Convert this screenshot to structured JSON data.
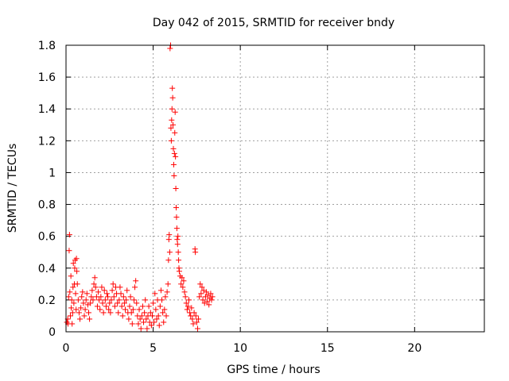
{
  "chart_data": {
    "type": "scatter",
    "title": "Day 042 of 2015, SRMTID for receiver bndy",
    "xlabel": "GPS time / hours",
    "ylabel": "SRMTID / TECUs",
    "xlim": [
      0,
      24
    ],
    "ylim": [
      0,
      1.8
    ],
    "xticks": [
      0,
      5,
      10,
      15,
      20
    ],
    "yticks": [
      0,
      0.2,
      0.4,
      0.6,
      0.8,
      1,
      1.2,
      1.4,
      1.6,
      1.8
    ],
    "xtick_labels": [
      "0",
      "5",
      "10",
      "15",
      "20"
    ],
    "ytick_labels": [
      "0",
      "0.2",
      "0.4",
      "0.6",
      "0.8",
      "1",
      "1.2",
      "1.4",
      "1.6",
      "1.8"
    ],
    "grid": true,
    "marker": "+",
    "color": "#ff0000",
    "series": [
      {
        "name": "SRMTID",
        "points": [
          [
            0.05,
            0.06
          ],
          [
            0.1,
            0.08
          ],
          [
            0.12,
            0.05
          ],
          [
            0.15,
            0.22
          ],
          [
            0.18,
            0.51
          ],
          [
            0.2,
            0.61
          ],
          [
            0.22,
            0.25
          ],
          [
            0.25,
            0.1
          ],
          [
            0.28,
            0.35
          ],
          [
            0.3,
            0.15
          ],
          [
            0.33,
            0.2
          ],
          [
            0.35,
            0.05
          ],
          [
            0.38,
            0.12
          ],
          [
            0.4,
            0.28
          ],
          [
            0.42,
            0.43
          ],
          [
            0.45,
            0.18
          ],
          [
            0.48,
            0.3
          ],
          [
            0.5,
            0.4
          ],
          [
            0.52,
            0.45
          ],
          [
            0.55,
            0.24
          ],
          [
            0.58,
            0.14
          ],
          [
            0.6,
            0.46
          ],
          [
            0.62,
            0.38
          ],
          [
            0.65,
            0.3
          ],
          [
            0.7,
            0.2
          ],
          [
            0.75,
            0.12
          ],
          [
            0.8,
            0.08
          ],
          [
            0.85,
            0.15
          ],
          [
            0.9,
            0.22
          ],
          [
            0.95,
            0.25
          ],
          [
            1.0,
            0.18
          ],
          [
            1.05,
            0.1
          ],
          [
            1.1,
            0.14
          ],
          [
            1.15,
            0.2
          ],
          [
            1.2,
            0.24
          ],
          [
            1.25,
            0.17
          ],
          [
            1.3,
            0.12
          ],
          [
            1.35,
            0.08
          ],
          [
            1.4,
            0.18
          ],
          [
            1.45,
            0.22
          ],
          [
            1.5,
            0.26
          ],
          [
            1.55,
            0.2
          ],
          [
            1.6,
            0.3
          ],
          [
            1.65,
            0.34
          ],
          [
            1.7,
            0.28
          ],
          [
            1.75,
            0.22
          ],
          [
            1.8,
            0.16
          ],
          [
            1.85,
            0.25
          ],
          [
            1.9,
            0.2
          ],
          [
            1.95,
            0.14
          ],
          [
            2.0,
            0.22
          ],
          [
            2.05,
            0.28
          ],
          [
            2.1,
            0.18
          ],
          [
            2.15,
            0.12
          ],
          [
            2.2,
            0.26
          ],
          [
            2.25,
            0.2
          ],
          [
            2.3,
            0.16
          ],
          [
            2.35,
            0.24
          ],
          [
            2.4,
            0.22
          ],
          [
            2.45,
            0.14
          ],
          [
            2.5,
            0.18
          ],
          [
            2.55,
            0.12
          ],
          [
            2.6,
            0.2
          ],
          [
            2.65,
            0.26
          ],
          [
            2.7,
            0.3
          ],
          [
            2.75,
            0.22
          ],
          [
            2.8,
            0.16
          ],
          [
            2.85,
            0.28
          ],
          [
            2.9,
            0.24
          ],
          [
            2.95,
            0.18
          ],
          [
            3.0,
            0.12
          ],
          [
            3.05,
            0.2
          ],
          [
            3.1,
            0.28
          ],
          [
            3.15,
            0.24
          ],
          [
            3.2,
            0.16
          ],
          [
            3.25,
            0.1
          ],
          [
            3.3,
            0.22
          ],
          [
            3.35,
            0.18
          ],
          [
            3.4,
            0.14
          ],
          [
            3.45,
            0.2
          ],
          [
            3.5,
            0.26
          ],
          [
            3.55,
            0.12
          ],
          [
            3.6,
            0.08
          ],
          [
            3.65,
            0.16
          ],
          [
            3.7,
            0.22
          ],
          [
            3.75,
            0.12
          ],
          [
            3.8,
            0.05
          ],
          [
            3.85,
            0.14
          ],
          [
            3.9,
            0.2
          ],
          [
            3.95,
            0.28
          ],
          [
            4.0,
            0.32
          ],
          [
            4.05,
            0.18
          ],
          [
            4.1,
            0.1
          ],
          [
            4.15,
            0.05
          ],
          [
            4.2,
            0.14
          ],
          [
            4.25,
            0.08
          ],
          [
            4.3,
            0.02
          ],
          [
            4.35,
            0.1
          ],
          [
            4.4,
            0.16
          ],
          [
            4.45,
            0.06
          ],
          [
            4.5,
            0.12
          ],
          [
            4.55,
            0.2
          ],
          [
            4.6,
            0.08
          ],
          [
            4.65,
            0.02
          ],
          [
            4.7,
            0.1
          ],
          [
            4.75,
            0.16
          ],
          [
            4.8,
            0.06
          ],
          [
            4.85,
            0.12
          ],
          [
            4.9,
            0.04
          ],
          [
            4.95,
            0.1
          ],
          [
            5.0,
            0.18
          ],
          [
            5.05,
            0.06
          ],
          [
            5.1,
            0.24
          ],
          [
            5.15,
            0.14
          ],
          [
            5.2,
            0.08
          ],
          [
            5.25,
            0.2
          ],
          [
            5.3,
            0.1
          ],
          [
            5.35,
            0.04
          ],
          [
            5.4,
            0.16
          ],
          [
            5.45,
            0.26
          ],
          [
            5.5,
            0.2
          ],
          [
            5.55,
            0.12
          ],
          [
            5.6,
            0.06
          ],
          [
            5.65,
            0.14
          ],
          [
            5.7,
            0.22
          ],
          [
            5.75,
            0.1
          ],
          [
            5.8,
            0.25
          ],
          [
            5.85,
            0.3
          ],
          [
            5.88,
            0.45
          ],
          [
            5.9,
            0.58
          ],
          [
            5.92,
            0.61
          ],
          [
            5.95,
            0.5
          ],
          [
            5.97,
            1.78
          ],
          [
            6.0,
            1.8
          ],
          [
            6.02,
            1.28
          ],
          [
            6.04,
            1.2
          ],
          [
            6.06,
            1.33
          ],
          [
            6.08,
            1.4
          ],
          [
            6.1,
            1.53
          ],
          [
            6.12,
            1.47
          ],
          [
            6.14,
            1.3
          ],
          [
            6.16,
            1.15
          ],
          [
            6.18,
            1.05
          ],
          [
            6.2,
            0.98
          ],
          [
            6.22,
            1.12
          ],
          [
            6.24,
            1.25
          ],
          [
            6.26,
            1.38
          ],
          [
            6.28,
            1.1
          ],
          [
            6.3,
            0.9
          ],
          [
            6.32,
            0.78
          ],
          [
            6.34,
            0.72
          ],
          [
            6.36,
            0.65
          ],
          [
            6.38,
            0.58
          ],
          [
            6.4,
            0.55
          ],
          [
            6.42,
            0.6
          ],
          [
            6.44,
            0.5
          ],
          [
            6.46,
            0.45
          ],
          [
            6.48,
            0.4
          ],
          [
            6.5,
            0.38
          ],
          [
            6.55,
            0.35
          ],
          [
            6.6,
            0.3
          ],
          [
            6.65,
            0.34
          ],
          [
            6.7,
            0.28
          ],
          [
            6.75,
            0.32
          ],
          [
            6.8,
            0.25
          ],
          [
            6.85,
            0.22
          ],
          [
            6.9,
            0.18
          ],
          [
            6.95,
            0.14
          ],
          [
            7.0,
            0.16
          ],
          [
            7.05,
            0.2
          ],
          [
            7.1,
            0.12
          ],
          [
            7.15,
            0.1
          ],
          [
            7.2,
            0.15
          ],
          [
            7.25,
            0.08
          ],
          [
            7.3,
            0.05
          ],
          [
            7.35,
            0.12
          ],
          [
            7.4,
            0.52
          ],
          [
            7.42,
            0.5
          ],
          [
            7.45,
            0.1
          ],
          [
            7.5,
            0.06
          ],
          [
            7.55,
            0.02
          ],
          [
            7.6,
            0.08
          ],
          [
            7.65,
            0.22
          ],
          [
            7.7,
            0.3
          ],
          [
            7.75,
            0.24
          ],
          [
            7.8,
            0.28
          ],
          [
            7.85,
            0.2
          ],
          [
            7.9,
            0.26
          ],
          [
            7.95,
            0.18
          ],
          [
            8.0,
            0.22
          ],
          [
            8.05,
            0.25
          ],
          [
            8.1,
            0.19
          ],
          [
            8.15,
            0.23
          ],
          [
            8.2,
            0.17
          ],
          [
            8.25,
            0.21
          ],
          [
            8.3,
            0.24
          ],
          [
            8.35,
            0.2
          ],
          [
            8.4,
            0.22
          ]
        ]
      }
    ]
  }
}
